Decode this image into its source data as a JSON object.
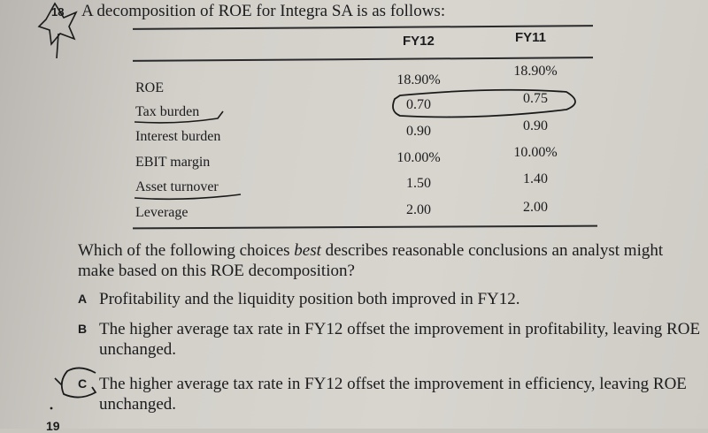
{
  "question": {
    "number": "18",
    "title": "A decomposition of ROE for Integra SA is as follows:"
  },
  "table": {
    "columns": [
      "FY12",
      "FY11"
    ],
    "rows": [
      {
        "label": "ROE",
        "fy12": "18.90%",
        "fy11": "18.90%"
      },
      {
        "label": "Tax burden",
        "fy12": "0.70",
        "fy11": "0.75"
      },
      {
        "label": "Interest burden",
        "fy12": "0.90",
        "fy11": "0.90"
      },
      {
        "label": "EBIT margin",
        "fy12": "10.00%",
        "fy11": "10.00%"
      },
      {
        "label": "Asset turnover",
        "fy12": "1.50",
        "fy11": "1.40"
      },
      {
        "label": "Leverage",
        "fy12": "2.00",
        "fy11": "2.00"
      }
    ]
  },
  "prompt": {
    "before": "Which of the following choices ",
    "emphasis": "best",
    "after": " describes reasonable conclusions an analyst might make based on this ROE decomposition?"
  },
  "options": [
    {
      "letter": "A",
      "text": "Profitability and the liquidity position both improved in FY12."
    },
    {
      "letter": "B",
      "text": "The higher average tax rate in FY12 offset the improvement in profitability, leaving ROE unchanged."
    },
    {
      "letter": "C",
      "text": "The higher average tax rate in FY12 offset the improvement in efficiency, leaving ROE unchanged."
    }
  ],
  "next_question_fragment": "19"
}
